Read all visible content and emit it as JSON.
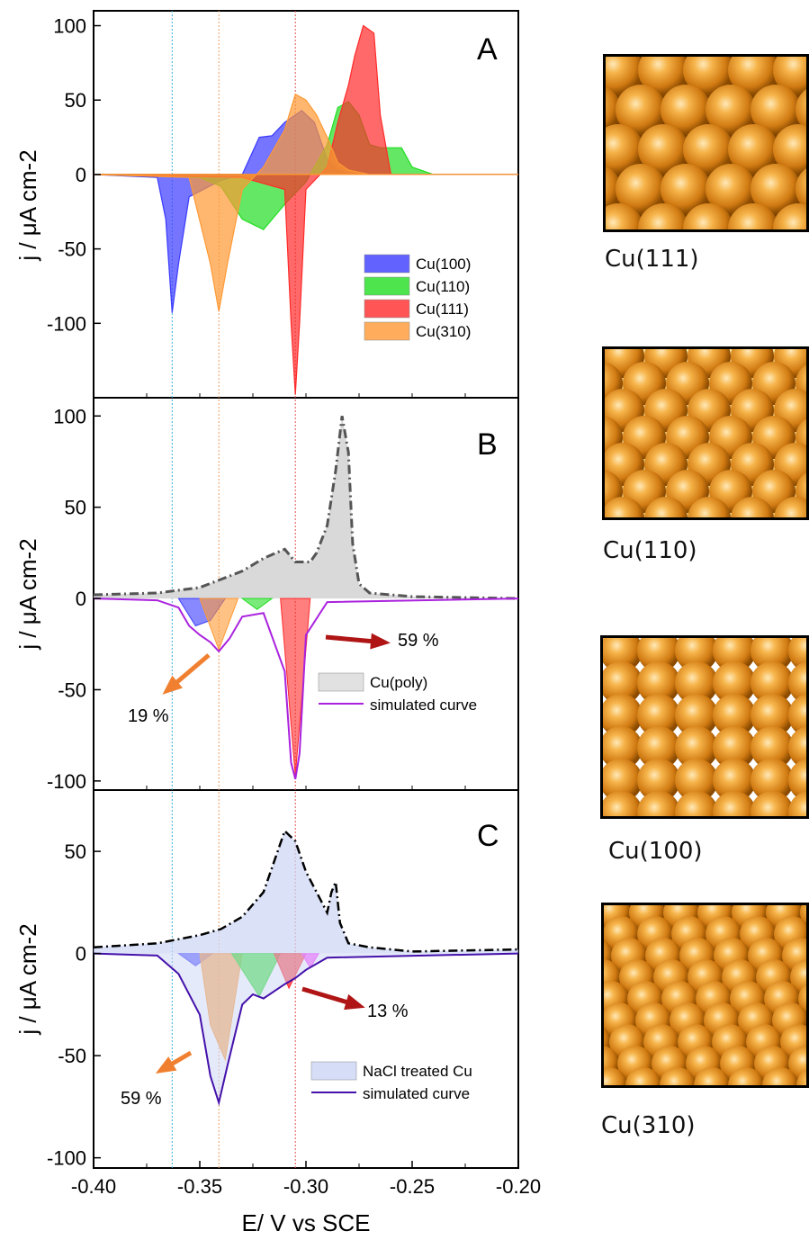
{
  "chart_data": [
    {
      "panel": "A",
      "type": "area",
      "xlim": [
        -0.4,
        -0.2
      ],
      "ylim": [
        -150,
        110
      ],
      "yticks": [
        100,
        50,
        0,
        -50,
        -100
      ],
      "ylabel": "j / μA cm-2",
      "reference_lines": [
        {
          "x": -0.363,
          "color": "#3ab0e0"
        },
        {
          "x": -0.341,
          "color": "#f0a060"
        },
        {
          "x": -0.305,
          "color": "#e05050"
        }
      ],
      "legend": {
        "position": "lower-right",
        "entries": [
          "Cu(100)",
          "Cu(110)",
          "Cu(111)",
          "Cu(310)"
        ]
      },
      "series": [
        {
          "name": "Cu(100)",
          "color": "#3b3bff",
          "x": [
            -0.4,
            -0.37,
            -0.366,
            -0.363,
            -0.36,
            -0.355,
            -0.34,
            -0.33,
            -0.322,
            -0.316,
            -0.31,
            -0.302,
            -0.296,
            -0.29,
            -0.285,
            -0.28,
            -0.27,
            -0.26,
            -0.2
          ],
          "y": [
            0,
            -2,
            -30,
            -93,
            -60,
            -15,
            -4,
            0,
            25,
            26,
            35,
            43,
            35,
            10,
            3,
            1,
            0,
            0,
            0
          ]
        },
        {
          "name": "Cu(110)",
          "color": "#22dd22",
          "x": [
            -0.4,
            -0.35,
            -0.34,
            -0.33,
            -0.32,
            -0.31,
            -0.3,
            -0.29,
            -0.285,
            -0.28,
            -0.275,
            -0.27,
            -0.265,
            -0.255,
            -0.25,
            -0.24,
            -0.2
          ],
          "y": [
            0,
            -2,
            -8,
            -30,
            -37,
            -20,
            -5,
            20,
            45,
            49,
            40,
            20,
            18,
            18,
            5,
            0,
            0
          ]
        },
        {
          "name": "Cu(111)",
          "color": "#ff2a2a",
          "x": [
            -0.4,
            -0.33,
            -0.31,
            -0.307,
            -0.305,
            -0.303,
            -0.3,
            -0.29,
            -0.285,
            -0.28,
            -0.277,
            -0.273,
            -0.268,
            -0.265,
            -0.26,
            -0.2
          ],
          "y": [
            0,
            -2,
            -10,
            -100,
            -148,
            -100,
            -10,
            5,
            35,
            60,
            80,
            100,
            95,
            40,
            0,
            0
          ]
        },
        {
          "name": "Cu(310)",
          "color": "#ff9933",
          "x": [
            -0.4,
            -0.355,
            -0.345,
            -0.341,
            -0.337,
            -0.33,
            -0.32,
            -0.31,
            -0.305,
            -0.3,
            -0.295,
            -0.29,
            -0.285,
            -0.28,
            -0.27,
            -0.2
          ],
          "y": [
            0,
            -2,
            -60,
            -92,
            -60,
            -10,
            5,
            30,
            54,
            50,
            40,
            25,
            8,
            3,
            0,
            0
          ]
        }
      ]
    },
    {
      "panel": "B",
      "type": "area",
      "xlim": [
        -0.4,
        -0.2
      ],
      "ylim": [
        -105,
        110
      ],
      "yticks": [
        100,
        50,
        0,
        -50,
        -100
      ],
      "ylabel": "j / μA cm-2",
      "legend": {
        "position": "lower-right",
        "entries": [
          "Cu(poly)",
          "simulated curve"
        ]
      },
      "series": [
        {
          "name": "Cu(poly)",
          "color": "#d9d9d9",
          "x": [
            -0.4,
            -0.37,
            -0.35,
            -0.33,
            -0.32,
            -0.31,
            -0.305,
            -0.298,
            -0.295,
            -0.29,
            -0.286,
            -0.283,
            -0.28,
            -0.278,
            -0.275,
            -0.27,
            -0.26,
            -0.25,
            -0.2
          ],
          "y": [
            2,
            3,
            6,
            15,
            22,
            27,
            20,
            20,
            25,
            40,
            70,
            100,
            80,
            30,
            8,
            3,
            2,
            1,
            0
          ]
        },
        {
          "name": "simulated curve",
          "color": "#aa22dd",
          "x": [
            -0.4,
            -0.37,
            -0.36,
            -0.355,
            -0.35,
            -0.345,
            -0.341,
            -0.336,
            -0.33,
            -0.32,
            -0.31,
            -0.307,
            -0.305,
            -0.303,
            -0.3,
            -0.29,
            -0.2
          ],
          "y": [
            0,
            -1,
            -5,
            -15,
            -20,
            -24,
            -29,
            -22,
            -10,
            -8,
            -40,
            -90,
            -99,
            -85,
            -20,
            -2,
            0
          ]
        }
      ],
      "components": [
        {
          "name": "Cu(100)",
          "color": "#3b3bff"
        },
        {
          "name": "Cu(310)",
          "color": "#ff9933"
        },
        {
          "name": "Cu(110)",
          "color": "#22dd22"
        },
        {
          "name": "Cu(111)",
          "color": "#ff2a2a"
        }
      ],
      "annotations": [
        {
          "text": "59 %",
          "color": "#b01515"
        },
        {
          "text": "19 %",
          "color": "#f08030"
        }
      ]
    },
    {
      "panel": "C",
      "type": "area",
      "xlim": [
        -0.4,
        -0.2
      ],
      "ylim": [
        -105,
        80
      ],
      "yticks": [
        50,
        0,
        -50,
        -100
      ],
      "ylabel": "j / μA cm-2",
      "xlabel": "E/ V vs SCE",
      "xticks": [
        "-0.40",
        "-0.35",
        "-0.30",
        "-0.25",
        "-0.20"
      ],
      "legend": {
        "position": "lower-right",
        "entries": [
          "NaCl treated Cu",
          "simulated curve"
        ]
      },
      "series": [
        {
          "name": "NaCl treated Cu",
          "color": "#ccd5f5",
          "x": [
            -0.4,
            -0.37,
            -0.35,
            -0.34,
            -0.33,
            -0.32,
            -0.315,
            -0.31,
            -0.305,
            -0.3,
            -0.295,
            -0.29,
            -0.288,
            -0.286,
            -0.284,
            -0.28,
            -0.27,
            -0.26,
            -0.25,
            -0.2
          ],
          "y": [
            3,
            5,
            9,
            12,
            18,
            30,
            45,
            60,
            55,
            40,
            30,
            20,
            30,
            35,
            15,
            5,
            3,
            2,
            1,
            2
          ]
        },
        {
          "name": "simulated curve",
          "color": "#4411aa",
          "x": [
            -0.4,
            -0.37,
            -0.36,
            -0.35,
            -0.345,
            -0.341,
            -0.337,
            -0.33,
            -0.325,
            -0.32,
            -0.31,
            -0.305,
            -0.3,
            -0.29,
            -0.2
          ],
          "y": [
            0,
            -1,
            -10,
            -30,
            -60,
            -73,
            -55,
            -25,
            -20,
            -22,
            -15,
            -12,
            -8,
            -2,
            0
          ]
        }
      ],
      "components": [
        {
          "name": "Cu(100)",
          "color": "#3b3bff"
        },
        {
          "name": "Cu(310)",
          "color": "#ff9933"
        },
        {
          "name": "Cu(110)",
          "color": "#22dd22"
        },
        {
          "name": "Cu(111)",
          "color": "#ff2a2a"
        },
        {
          "name": "extra",
          "color": "#ff33ff"
        }
      ],
      "annotations": [
        {
          "text": "13 %",
          "color": "#b01515"
        },
        {
          "text": "59 %",
          "color": "#f08030"
        }
      ]
    }
  ],
  "panel_letters": [
    "A",
    "B",
    "C"
  ],
  "facets": [
    {
      "label": "Cu(111)",
      "pattern": "hex"
    },
    {
      "label": "Cu(110)",
      "pattern": "rect"
    },
    {
      "label": "Cu(100)",
      "pattern": "square"
    },
    {
      "label": "Cu(310)",
      "pattern": "stepped"
    }
  ]
}
